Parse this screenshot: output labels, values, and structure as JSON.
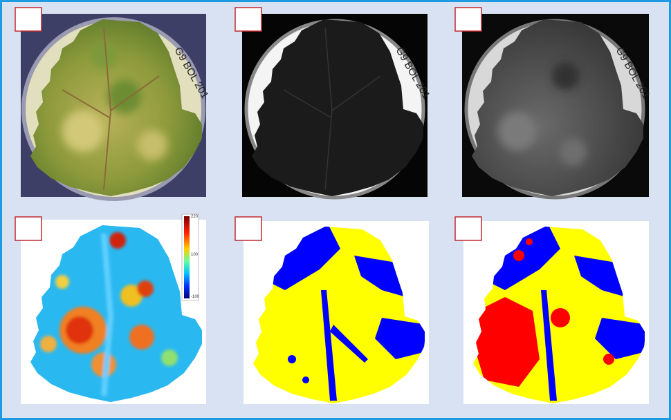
{
  "dish_label": "G9 BOL 201",
  "colorbar": {
    "ticks": [
      "220",
      "100",
      "-100"
    ]
  }
}
